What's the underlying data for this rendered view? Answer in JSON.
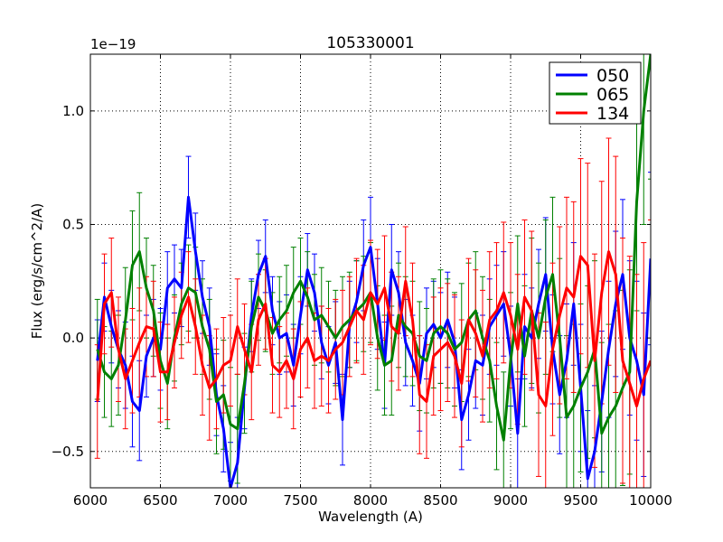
{
  "chart_data": {
    "type": "line",
    "title": "105330001",
    "xlabel": "Wavelength (A)",
    "ylabel": "Flux (erg/s/cm^2/A)",
    "offset_text": "1e−19",
    "xlim": [
      6000,
      10000
    ],
    "ylim": [
      -0.66,
      1.25
    ],
    "grid": true,
    "legend_position": "top-right",
    "x_ticks": [
      6000,
      6500,
      7000,
      7500,
      8000,
      8500,
      9000,
      9500,
      10000
    ],
    "x_tick_labels": [
      "6000",
      "6500",
      "7000",
      "7500",
      "8000",
      "8500",
      "9000",
      "9500",
      "10000"
    ],
    "y_ticks": [
      -0.5,
      0.0,
      0.5,
      1.0
    ],
    "y_tick_labels": [
      "−0.5",
      "0.0",
      "0.5",
      "1.0"
    ],
    "series": [
      {
        "name": "050",
        "color": "#0000ff",
        "x": [
          6050,
          6100,
          6150,
          6200,
          6250,
          6300,
          6350,
          6400,
          6450,
          6500,
          6550,
          6600,
          6650,
          6700,
          6750,
          6800,
          6850,
          6900,
          6950,
          7000,
          7050,
          7100,
          7150,
          7200,
          7250,
          7300,
          7350,
          7400,
          7450,
          7500,
          7550,
          7600,
          7650,
          7700,
          7750,
          7800,
          7850,
          7900,
          7950,
          8000,
          8050,
          8100,
          8150,
          8200,
          8250,
          8300,
          8350,
          8400,
          8450,
          8500,
          8550,
          8600,
          8650,
          8700,
          8750,
          8800,
          8850,
          8900,
          8950,
          9000,
          9050,
          9100,
          9150,
          9200,
          9250,
          9300,
          9350,
          9400,
          9450,
          9500,
          9550,
          9600,
          9650,
          9700,
          9750,
          9800,
          9850,
          9900,
          9950,
          10000
        ],
        "y": [
          -0.1,
          0.18,
          0.05,
          -0.05,
          -0.12,
          -0.28,
          -0.32,
          -0.08,
          0.0,
          -0.05,
          0.22,
          0.26,
          0.22,
          0.62,
          0.38,
          0.18,
          0.05,
          -0.25,
          -0.4,
          -0.66,
          -0.55,
          -0.22,
          0.1,
          0.28,
          0.36,
          0.12,
          0.0,
          0.02,
          -0.12,
          0.1,
          0.3,
          0.2,
          -0.02,
          -0.12,
          -0.02,
          -0.36,
          0.06,
          0.16,
          0.32,
          0.4,
          0.15,
          -0.12,
          0.3,
          0.2,
          -0.02,
          -0.1,
          -0.2,
          0.02,
          0.06,
          0.0,
          0.08,
          -0.02,
          -0.36,
          -0.25,
          -0.1,
          -0.12,
          0.05,
          0.1,
          0.15,
          -0.08,
          -0.42,
          0.05,
          0.0,
          0.15,
          0.28,
          -0.05,
          -0.25,
          -0.1,
          0.15,
          -0.22,
          -0.62,
          -0.5,
          -0.28,
          -0.05,
          0.15,
          0.28,
          0.0,
          -0.1,
          -0.25,
          0.35
        ],
        "err": [
          0.18,
          0.15,
          0.16,
          0.17,
          0.19,
          0.2,
          0.22,
          0.18,
          0.17,
          0.18,
          0.16,
          0.15,
          0.17,
          0.18,
          0.17,
          0.16,
          0.17,
          0.18,
          0.19,
          0.2,
          0.2,
          0.18,
          0.16,
          0.15,
          0.16,
          0.15,
          0.16,
          0.17,
          0.18,
          0.17,
          0.16,
          0.17,
          0.16,
          0.17,
          0.18,
          0.2,
          0.19,
          0.18,
          0.2,
          0.22,
          0.2,
          0.19,
          0.2,
          0.18,
          0.19,
          0.2,
          0.21,
          0.2,
          0.19,
          0.2,
          0.21,
          0.2,
          0.22,
          0.2,
          0.21,
          0.22,
          0.21,
          0.22,
          0.23,
          0.22,
          0.24,
          0.23,
          0.22,
          0.24,
          0.25,
          0.24,
          0.26,
          0.25,
          0.27,
          0.28,
          0.3,
          0.29,
          0.31,
          0.3,
          0.32,
          0.33,
          0.34,
          0.35,
          0.36,
          0.38
        ]
      },
      {
        "name": "065",
        "color": "#008000",
        "x": [
          6050,
          6100,
          6150,
          6200,
          6250,
          6300,
          6350,
          6400,
          6450,
          6500,
          6550,
          6600,
          6650,
          6700,
          6750,
          6800,
          6850,
          6900,
          6950,
          7000,
          7050,
          7100,
          7150,
          7200,
          7250,
          7300,
          7350,
          7400,
          7450,
          7500,
          7550,
          7600,
          7650,
          7700,
          7750,
          7800,
          7850,
          7900,
          7950,
          8000,
          8050,
          8100,
          8150,
          8200,
          8250,
          8300,
          8350,
          8400,
          8450,
          8500,
          8550,
          8600,
          8650,
          8700,
          8750,
          8800,
          8850,
          8900,
          8950,
          9000,
          9050,
          9100,
          9150,
          9200,
          9250,
          9300,
          9350,
          9400,
          9450,
          9500,
          9550,
          9600,
          9650,
          9700,
          9750,
          9800,
          9850,
          9900,
          9950,
          10000
        ],
        "y": [
          -0.05,
          -0.15,
          -0.18,
          -0.12,
          0.08,
          0.32,
          0.38,
          0.22,
          0.12,
          -0.1,
          -0.2,
          0.0,
          0.15,
          0.22,
          0.2,
          0.05,
          -0.05,
          -0.28,
          -0.25,
          -0.38,
          -0.4,
          -0.2,
          0.05,
          0.18,
          0.12,
          0.02,
          0.08,
          0.12,
          0.2,
          0.25,
          0.18,
          0.08,
          0.1,
          0.05,
          0.0,
          0.05,
          0.08,
          0.12,
          0.15,
          0.2,
          0.0,
          -0.12,
          -0.1,
          0.1,
          0.05,
          0.02,
          -0.08,
          -0.1,
          0.02,
          0.05,
          0.02,
          -0.05,
          -0.02,
          0.08,
          0.12,
          0.0,
          -0.1,
          -0.3,
          -0.45,
          -0.1,
          0.15,
          -0.08,
          0.12,
          0.0,
          0.18,
          0.28,
          0.0,
          -0.35,
          -0.3,
          -0.22,
          -0.15,
          -0.05,
          -0.42,
          -0.35,
          -0.3,
          -0.22,
          -0.15,
          0.6,
          1.0,
          1.25
        ],
        "err": [
          0.22,
          0.2,
          0.21,
          0.22,
          0.23,
          0.24,
          0.26,
          0.22,
          0.2,
          0.21,
          0.2,
          0.19,
          0.18,
          0.19,
          0.2,
          0.21,
          0.22,
          0.23,
          0.24,
          0.25,
          0.24,
          0.22,
          0.2,
          0.19,
          0.18,
          0.18,
          0.19,
          0.2,
          0.2,
          0.19,
          0.2,
          0.2,
          0.21,
          0.2,
          0.21,
          0.22,
          0.21,
          0.22,
          0.21,
          0.22,
          0.23,
          0.22,
          0.24,
          0.23,
          0.22,
          0.23,
          0.24,
          0.23,
          0.24,
          0.25,
          0.24,
          0.25,
          0.26,
          0.25,
          0.26,
          0.27,
          0.27,
          0.28,
          0.3,
          0.3,
          0.3,
          0.31,
          0.32,
          0.33,
          0.34,
          0.34,
          0.35,
          0.36,
          0.36,
          0.37,
          0.38,
          0.39,
          0.4,
          0.41,
          0.42,
          0.43,
          0.45,
          0.48,
          0.5,
          0.55
        ]
      },
      {
        "name": "134",
        "color": "#ff0000",
        "x": [
          6050,
          6100,
          6150,
          6200,
          6250,
          6300,
          6350,
          6400,
          6450,
          6500,
          6550,
          6600,
          6650,
          6700,
          6750,
          6800,
          6850,
          6900,
          6950,
          7000,
          7050,
          7100,
          7150,
          7200,
          7250,
          7300,
          7350,
          7400,
          7450,
          7500,
          7550,
          7600,
          7650,
          7700,
          7750,
          7800,
          7850,
          7900,
          7950,
          8000,
          8050,
          8100,
          8150,
          8200,
          8250,
          8300,
          8350,
          8400,
          8450,
          8500,
          8550,
          8600,
          8650,
          8700,
          8750,
          8800,
          8850,
          8900,
          8950,
          9000,
          9050,
          9100,
          9150,
          9200,
          9250,
          9300,
          9350,
          9400,
          9450,
          9500,
          9550,
          9600,
          9650,
          9700,
          9750,
          9800,
          9850,
          9900,
          9950,
          10000
        ],
        "y": [
          -0.28,
          0.15,
          0.2,
          -0.05,
          -0.18,
          -0.1,
          -0.02,
          0.05,
          0.04,
          -0.15,
          -0.15,
          -0.02,
          0.1,
          0.18,
          0.05,
          -0.12,
          -0.22,
          -0.18,
          -0.12,
          -0.1,
          0.05,
          -0.05,
          -0.15,
          0.08,
          0.15,
          -0.12,
          -0.15,
          -0.1,
          -0.18,
          -0.05,
          0.0,
          -0.1,
          -0.08,
          -0.1,
          -0.05,
          -0.02,
          0.05,
          0.12,
          0.08,
          0.2,
          0.15,
          0.22,
          0.05,
          0.02,
          0.25,
          0.08,
          -0.25,
          -0.28,
          -0.08,
          -0.05,
          -0.02,
          -0.08,
          -0.2,
          0.08,
          0.02,
          -0.08,
          0.08,
          0.12,
          0.2,
          0.1,
          -0.05,
          0.18,
          0.12,
          -0.25,
          -0.3,
          -0.05,
          0.1,
          0.22,
          0.18,
          0.36,
          0.32,
          -0.1,
          0.2,
          0.38,
          0.28,
          -0.1,
          -0.2,
          -0.3,
          -0.18,
          -0.1
        ],
        "err": [
          0.25,
          0.22,
          0.24,
          0.23,
          0.22,
          0.23,
          0.24,
          0.22,
          0.21,
          0.22,
          0.21,
          0.2,
          0.19,
          0.2,
          0.21,
          0.22,
          0.23,
          0.22,
          0.21,
          0.2,
          0.21,
          0.2,
          0.21,
          0.2,
          0.2,
          0.21,
          0.2,
          0.21,
          0.22,
          0.21,
          0.22,
          0.21,
          0.22,
          0.23,
          0.22,
          0.23,
          0.22,
          0.23,
          0.24,
          0.23,
          0.24,
          0.23,
          0.24,
          0.25,
          0.24,
          0.25,
          0.26,
          0.25,
          0.26,
          0.27,
          0.26,
          0.27,
          0.28,
          0.27,
          0.28,
          0.29,
          0.3,
          0.3,
          0.31,
          0.32,
          0.33,
          0.34,
          0.35,
          0.36,
          0.37,
          0.38,
          0.39,
          0.4,
          0.42,
          0.43,
          0.45,
          0.47,
          0.49,
          0.5,
          0.52,
          0.54,
          0.56,
          0.58,
          0.6,
          0.62
        ]
      }
    ]
  }
}
